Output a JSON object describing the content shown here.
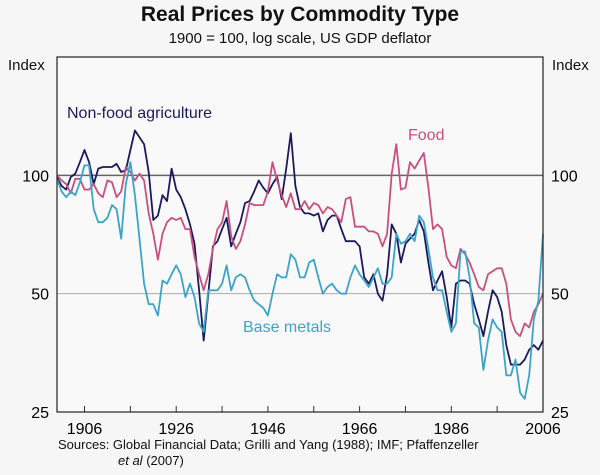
{
  "chart_data": {
    "type": "line",
    "title": "Real Prices by Commodity Type",
    "subtitle": "1900 = 100, log scale, US GDP deflator",
    "ylabel_left": "Index",
    "ylabel_right": "Index",
    "xlabel": "",
    "y_scale": "log",
    "ylim": [
      25,
      200
    ],
    "xlim": [
      1900,
      2006
    ],
    "y_ticks": [
      25,
      50,
      100
    ],
    "x_tick_labels": [
      1906,
      1926,
      1946,
      1966,
      1986,
      2006
    ],
    "x_minor_ticks": [
      1906,
      1916,
      1926,
      1936,
      1946,
      1956,
      1966,
      1976,
      1986,
      1996
    ],
    "reference_lines": [
      100,
      50
    ],
    "x_start": 1900,
    "series": [
      {
        "name": "Non-food agriculture",
        "color": "#1b1a5f",
        "values": [
          99,
          94,
          92,
          99,
          101,
          108,
          116,
          108,
          95,
          104,
          105,
          105,
          105,
          107,
          102,
          103,
          116,
          130,
          125,
          120,
          102,
          77,
          79,
          89,
          86,
          104,
          92,
          88,
          82,
          75,
          67,
          51,
          38,
          50,
          66,
          68,
          73,
          78,
          66,
          71,
          76,
          85,
          86,
          91,
          97,
          93,
          90,
          95,
          99,
          87,
          104,
          128,
          94,
          83,
          80,
          80,
          79,
          80,
          72,
          77,
          79,
          79,
          73,
          68,
          68,
          68,
          66,
          55,
          53,
          56,
          50,
          48,
          56,
          75,
          71,
          60,
          67,
          69,
          71,
          77,
          72,
          60,
          51,
          54,
          57,
          49,
          41,
          53,
          54,
          54,
          53,
          47,
          43,
          39,
          45,
          51,
          49,
          45,
          37,
          33,
          33,
          33,
          34,
          36,
          37,
          36,
          38
        ]
      },
      {
        "name": "Food",
        "color": "#c8507f",
        "values": [
          100,
          97,
          95,
          90,
          98,
          98,
          92,
          92,
          95,
          90,
          88,
          97,
          96,
          88,
          91,
          105,
          102,
          97,
          101,
          97,
          80,
          71,
          61,
          71,
          76,
          78,
          77,
          78,
          73,
          73,
          62,
          56,
          51,
          56,
          65,
          73,
          76,
          86,
          70,
          65,
          68,
          75,
          85,
          84,
          84,
          84,
          91,
          108,
          97,
          89,
          83,
          90,
          82,
          82,
          86,
          82,
          85,
          84,
          80,
          83,
          82,
          79,
          76,
          87,
          88,
          74,
          74,
          74,
          72,
          72,
          71,
          66,
          71,
          101,
          120,
          92,
          93,
          108,
          104,
          109,
          114,
          93,
          73,
          75,
          73,
          62,
          59,
          58,
          65,
          63,
          60,
          56,
          52,
          51,
          56,
          57,
          58,
          58,
          53,
          43,
          40,
          39,
          42,
          41,
          45,
          47,
          50
        ]
      },
      {
        "name": "Base metals",
        "color": "#3da4c9",
        "values": [
          98,
          91,
          88,
          91,
          89,
          96,
          106,
          106,
          82,
          76,
          76,
          78,
          84,
          82,
          69,
          95,
          108,
          89,
          69,
          53,
          47,
          47,
          44,
          54,
          53,
          56,
          59,
          56,
          49,
          53,
          49,
          42,
          40,
          51,
          51,
          51,
          53,
          59,
          51,
          55,
          56,
          55,
          51,
          48,
          47,
          46,
          44,
          50,
          56,
          55,
          55,
          63,
          61,
          55,
          55,
          60,
          61,
          55,
          50,
          52,
          53,
          51,
          50,
          50,
          55,
          59,
          56,
          54,
          52,
          55,
          58,
          53,
          53,
          55,
          71,
          67,
          68,
          71,
          68,
          79,
          76,
          65,
          55,
          51,
          51,
          45,
          40,
          42,
          64,
          64,
          55,
          42,
          41,
          32,
          38,
          43,
          41,
          40,
          31,
          31,
          34,
          28,
          27,
          31,
          43,
          48,
          71
        ]
      }
    ],
    "annotations": [
      "Non-food agriculture",
      "Food",
      "Base metals"
    ],
    "source_prefix": "Sources: Global Financial Data; Grilli and Yang (1988); IMF; Pfaffenzeller",
    "source_italic": "et al",
    "source_suffix": " (2007)"
  }
}
